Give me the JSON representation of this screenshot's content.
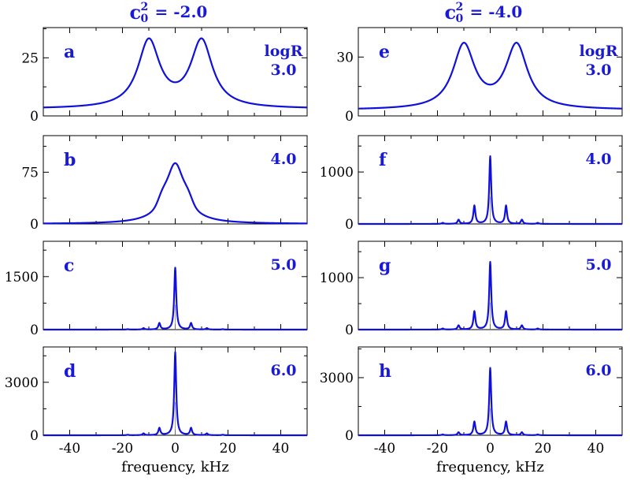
{
  "figure": {
    "columns": [
      {
        "title": "c",
        "title_sup": "2",
        "title_sub": "0",
        "title_value": "=  -2.0"
      },
      {
        "title": "c",
        "title_sup": "2",
        "title_sub": "0",
        "title_value": "=  -4.0"
      }
    ],
    "xlabel": "frequency, kHz",
    "colors": {
      "line": "#1010dd",
      "label": "#1a1ad6",
      "axis": "#000000"
    }
  },
  "chart_data": [
    {
      "type": "line",
      "panel": "a",
      "annotation": [
        "logR",
        "3.0"
      ],
      "shape": "double",
      "xlim": [
        -50,
        50
      ],
      "ylim": [
        0,
        38
      ],
      "yticks": [
        0,
        25
      ],
      "xticks": [
        -40,
        -20,
        0,
        20,
        40
      ],
      "params": {
        "center": 10,
        "height": 34,
        "width": 5,
        "floor": 3
      }
    },
    {
      "type": "line",
      "panel": "b",
      "annotation": [
        "4.0"
      ],
      "shape": "single",
      "xlim": [
        -50,
        50
      ],
      "ylim": [
        0,
        128
      ],
      "yticks": [
        0,
        75
      ],
      "xticks": [
        -40,
        -20,
        0,
        20,
        40
      ],
      "params": {
        "height": 88,
        "width": 4.5,
        "shoulders": [
          {
            "x": -5,
            "h": 10,
            "w": 2.2
          },
          {
            "x": 5,
            "h": 10,
            "w": 2.2
          }
        ]
      }
    },
    {
      "type": "line",
      "panel": "c",
      "annotation": [
        "5.0"
      ],
      "shape": "spikes",
      "xlim": [
        -50,
        50
      ],
      "ylim": [
        0,
        2500
      ],
      "yticks": [
        0,
        1500
      ],
      "xticks": [
        -40,
        -20,
        0,
        20,
        40
      ],
      "params": {
        "spikes": [
          {
            "x": 0,
            "h": 1750
          },
          {
            "x": -6,
            "h": 180
          },
          {
            "x": 6,
            "h": 180
          },
          {
            "x": -12,
            "h": 40
          },
          {
            "x": 12,
            "h": 40
          },
          {
            "x": -18,
            "h": 10
          },
          {
            "x": 18,
            "h": 10
          }
        ]
      }
    },
    {
      "type": "line",
      "panel": "d",
      "annotation": [
        "6.0"
      ],
      "shape": "spikes",
      "xlim": [
        -50,
        50
      ],
      "ylim": [
        0,
        5000
      ],
      "yticks": [
        0,
        3000
      ],
      "xticks": [
        -40,
        -20,
        0,
        20,
        40
      ],
      "params": {
        "spikes": [
          {
            "x": 0,
            "h": 4700
          },
          {
            "x": -6,
            "h": 400
          },
          {
            "x": 6,
            "h": 400
          },
          {
            "x": -12,
            "h": 100
          },
          {
            "x": 12,
            "h": 100
          },
          {
            "x": -18,
            "h": 25
          },
          {
            "x": 18,
            "h": 25
          }
        ]
      }
    },
    {
      "type": "line",
      "panel": "e",
      "annotation": [
        "logR",
        "3.0"
      ],
      "shape": "double",
      "xlim": [
        -50,
        50
      ],
      "ylim": [
        0,
        45
      ],
      "yticks": [
        0,
        30
      ],
      "xticks": [
        -40,
        -20,
        0,
        20,
        40
      ],
      "params": {
        "center": 10,
        "height": 38,
        "width": 5,
        "floor": 3
      }
    },
    {
      "type": "line",
      "panel": "f",
      "annotation": [
        "4.0"
      ],
      "shape": "spikes",
      "xlim": [
        -50,
        50
      ],
      "ylim": [
        0,
        1700
      ],
      "yticks": [
        0,
        1000
      ],
      "xticks": [
        -40,
        -20,
        0,
        20,
        40
      ],
      "params": {
        "spikes": [
          {
            "x": 0,
            "h": 1300
          },
          {
            "x": -6,
            "h": 350
          },
          {
            "x": 6,
            "h": 350
          },
          {
            "x": -12,
            "h": 80
          },
          {
            "x": 12,
            "h": 80
          },
          {
            "x": -18,
            "h": 20
          },
          {
            "x": 18,
            "h": 20
          }
        ]
      }
    },
    {
      "type": "line",
      "panel": "g",
      "annotation": [
        "5.0"
      ],
      "shape": "spikes",
      "xlim": [
        -50,
        50
      ],
      "ylim": [
        0,
        1700
      ],
      "yticks": [
        0,
        1000
      ],
      "xticks": [
        -40,
        -20,
        0,
        20,
        40
      ],
      "params": {
        "spikes": [
          {
            "x": 0,
            "h": 1300
          },
          {
            "x": -6,
            "h": 350
          },
          {
            "x": 6,
            "h": 350
          },
          {
            "x": -12,
            "h": 80
          },
          {
            "x": 12,
            "h": 80
          },
          {
            "x": -18,
            "h": 20
          },
          {
            "x": 18,
            "h": 20
          }
        ]
      }
    },
    {
      "type": "line",
      "panel": "h",
      "annotation": [
        "6.0"
      ],
      "shape": "spikes",
      "xlim": [
        -50,
        50
      ],
      "ylim": [
        0,
        4600
      ],
      "yticks": [
        0,
        3000
      ],
      "xticks": [
        -40,
        -20,
        0,
        20,
        40
      ],
      "params": {
        "spikes": [
          {
            "x": 0,
            "h": 3500
          },
          {
            "x": -6,
            "h": 700
          },
          {
            "x": 6,
            "h": 700
          },
          {
            "x": -12,
            "h": 150
          },
          {
            "x": 12,
            "h": 150
          },
          {
            "x": -18,
            "h": 40
          },
          {
            "x": 18,
            "h": 40
          }
        ]
      }
    }
  ]
}
